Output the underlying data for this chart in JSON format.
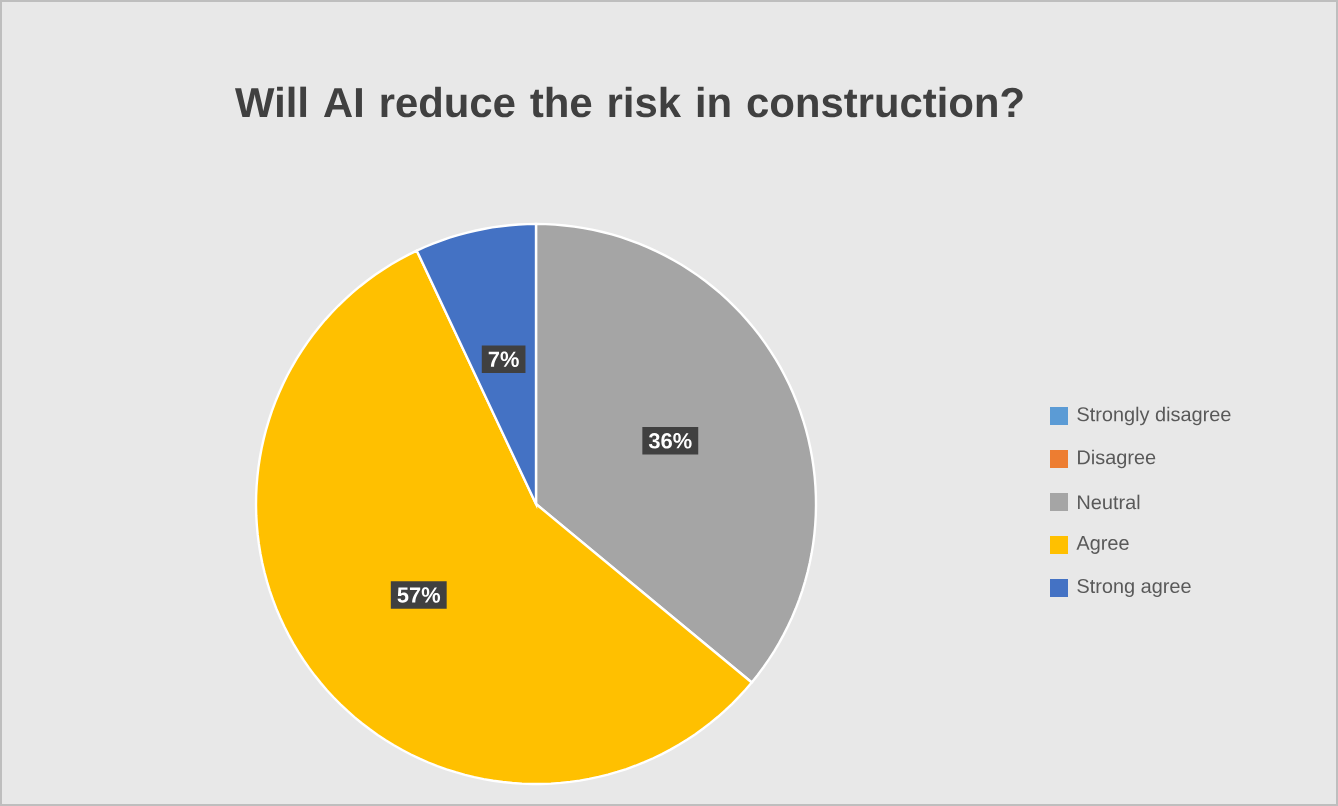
{
  "chart_data": {
    "type": "pie",
    "title": "Will AI reduce the risk in construction?",
    "categories": [
      "Strongly disagree",
      "Disagree",
      "Neutral",
      "Agree",
      "Strong agree"
    ],
    "values": [
      0,
      0,
      36,
      57,
      7
    ],
    "colors": [
      "#5b9bd5",
      "#ed7d31",
      "#a5a5a5",
      "#ffc000",
      "#4472c4"
    ],
    "value_labels": [
      null,
      null,
      "36%",
      "57%",
      "7%"
    ],
    "legend": "right"
  }
}
